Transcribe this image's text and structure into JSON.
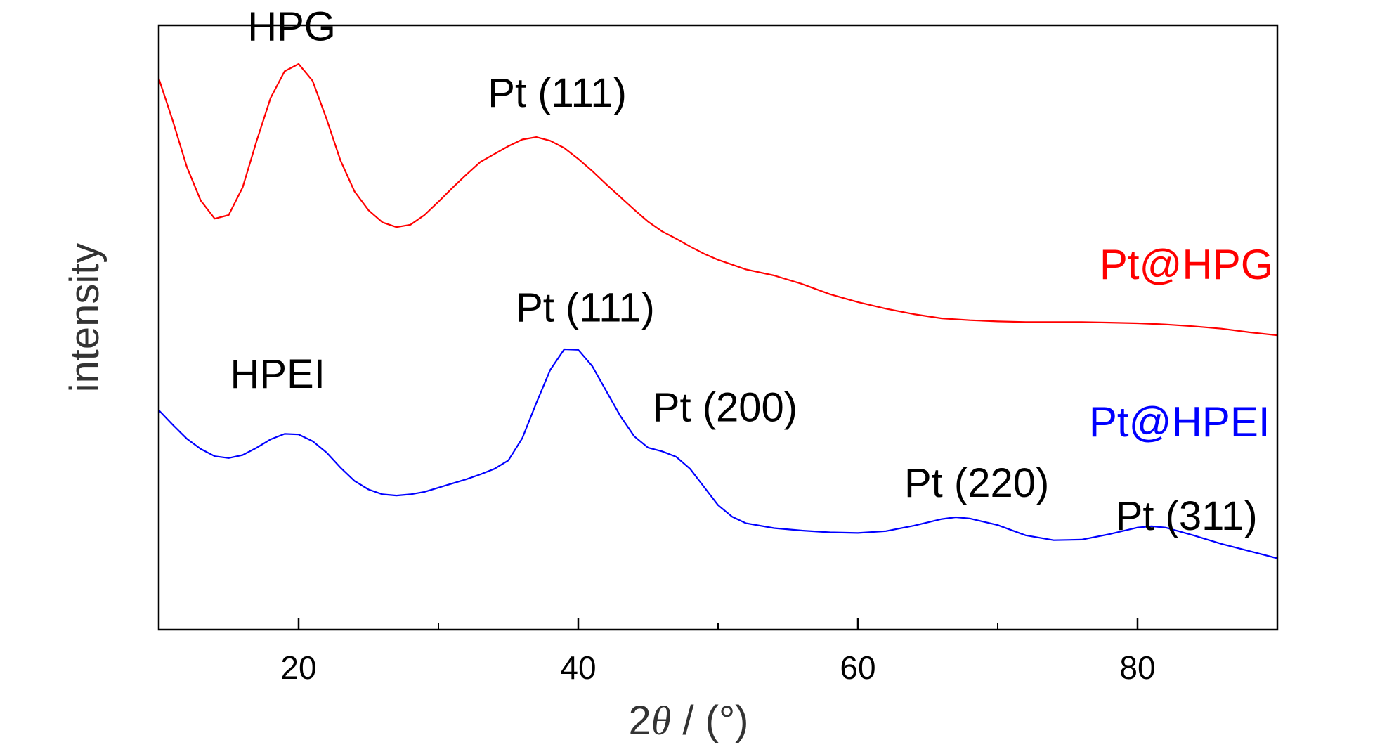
{
  "chart_data": {
    "type": "line",
    "title": "",
    "xlabel_parts": [
      "2",
      "θ",
      " / (°)"
    ],
    "ylabel": "intensity",
    "xlim": [
      10,
      90
    ],
    "ylim": [
      0,
      100
    ],
    "x_ticks": [
      20,
      40,
      60,
      80
    ],
    "x_minor_ticks": [
      30,
      50,
      70
    ],
    "x_tick_labels": [
      "20",
      "40",
      "60",
      "80"
    ],
    "y_ticks_shown": false,
    "grid": false,
    "series": [
      {
        "name": "Pt@HPG",
        "color": "#ff0000",
        "points": [
          [
            10,
            91.2
          ],
          [
            11,
            84.2
          ],
          [
            12,
            76.6
          ],
          [
            13,
            71.0
          ],
          [
            14,
            68.0
          ],
          [
            15,
            68.6
          ],
          [
            16,
            73.2
          ],
          [
            17,
            80.9
          ],
          [
            18,
            88.0
          ],
          [
            19,
            92.4
          ],
          [
            20,
            93.6
          ],
          [
            21,
            90.8
          ],
          [
            22,
            84.5
          ],
          [
            23,
            77.6
          ],
          [
            24,
            72.5
          ],
          [
            25,
            69.4
          ],
          [
            26,
            67.4
          ],
          [
            27,
            66.6
          ],
          [
            28,
            67.0
          ],
          [
            29,
            68.6
          ],
          [
            30,
            70.8
          ],
          [
            31,
            73.1
          ],
          [
            32,
            75.3
          ],
          [
            33,
            77.4
          ],
          [
            34,
            78.7
          ],
          [
            35,
            80.0
          ],
          [
            36,
            81.1
          ],
          [
            37,
            81.5
          ],
          [
            38,
            80.9
          ],
          [
            39,
            79.7
          ],
          [
            40,
            77.9
          ],
          [
            41,
            75.9
          ],
          [
            42,
            73.7
          ],
          [
            43,
            71.6
          ],
          [
            44,
            69.5
          ],
          [
            45,
            67.5
          ],
          [
            46,
            65.9
          ],
          [
            47,
            64.7
          ],
          [
            48,
            63.4
          ],
          [
            49,
            62.2
          ],
          [
            50,
            61.2
          ],
          [
            52,
            59.6
          ],
          [
            54,
            58.6
          ],
          [
            56,
            57.2
          ],
          [
            58,
            55.5
          ],
          [
            60,
            54.2
          ],
          [
            62,
            53.1
          ],
          [
            64,
            52.2
          ],
          [
            66,
            51.5
          ],
          [
            68,
            51.2
          ],
          [
            70,
            51.0
          ],
          [
            72,
            50.9
          ],
          [
            74,
            50.9
          ],
          [
            76,
            50.9
          ],
          [
            78,
            50.8
          ],
          [
            80,
            50.7
          ],
          [
            82,
            50.5
          ],
          [
            84,
            50.2
          ],
          [
            86,
            49.8
          ],
          [
            88,
            49.2
          ],
          [
            90,
            48.7
          ]
        ]
      },
      {
        "name": "Pt@HPEI",
        "color": "#0000ff",
        "points": [
          [
            10,
            36.3
          ],
          [
            11,
            33.9
          ],
          [
            12,
            31.6
          ],
          [
            13,
            29.9
          ],
          [
            14,
            28.7
          ],
          [
            15,
            28.4
          ],
          [
            16,
            28.9
          ],
          [
            17,
            30.1
          ],
          [
            18,
            31.5
          ],
          [
            19,
            32.4
          ],
          [
            20,
            32.3
          ],
          [
            21,
            31.2
          ],
          [
            22,
            29.3
          ],
          [
            23,
            26.8
          ],
          [
            24,
            24.6
          ],
          [
            25,
            23.2
          ],
          [
            26,
            22.4
          ],
          [
            27,
            22.2
          ],
          [
            28,
            22.4
          ],
          [
            29,
            22.8
          ],
          [
            30,
            23.5
          ],
          [
            31,
            24.2
          ],
          [
            32,
            24.9
          ],
          [
            33,
            25.7
          ],
          [
            34,
            26.6
          ],
          [
            35,
            28.0
          ],
          [
            36,
            31.7
          ],
          [
            37,
            37.5
          ],
          [
            38,
            43.0
          ],
          [
            39,
            46.4
          ],
          [
            40,
            46.3
          ],
          [
            41,
            43.6
          ],
          [
            42,
            39.5
          ],
          [
            43,
            35.4
          ],
          [
            44,
            32.0
          ],
          [
            45,
            30.1
          ],
          [
            46,
            29.5
          ],
          [
            47,
            28.6
          ],
          [
            48,
            26.6
          ],
          [
            49,
            23.6
          ],
          [
            50,
            20.6
          ],
          [
            51,
            18.7
          ],
          [
            52,
            17.6
          ],
          [
            54,
            16.8
          ],
          [
            56,
            16.4
          ],
          [
            58,
            16.1
          ],
          [
            60,
            16.0
          ],
          [
            62,
            16.3
          ],
          [
            64,
            17.2
          ],
          [
            66,
            18.3
          ],
          [
            67,
            18.6
          ],
          [
            68,
            18.4
          ],
          [
            70,
            17.3
          ],
          [
            72,
            15.6
          ],
          [
            74,
            14.8
          ],
          [
            76,
            14.9
          ],
          [
            78,
            15.8
          ],
          [
            80,
            16.9
          ],
          [
            81,
            17.1
          ],
          [
            82,
            16.9
          ],
          [
            84,
            15.6
          ],
          [
            86,
            14.2
          ],
          [
            88,
            13.0
          ],
          [
            90,
            11.8
          ]
        ]
      }
    ],
    "annotations": [
      {
        "id": "hpg",
        "text": "HPG",
        "x": 19.5,
        "y": 97.5
      },
      {
        "id": "pt111-hpg",
        "text": "Pt (111)",
        "x": 38.5,
        "y": 86.5
      },
      {
        "id": "hpei",
        "text": "HPEI",
        "x": 18.5,
        "y": 40.0
      },
      {
        "id": "pt111-hpei",
        "text": "Pt (111)",
        "x": 40.5,
        "y": 51.0
      },
      {
        "id": "pt200",
        "text": "Pt (200)",
        "x": 50.5,
        "y": 34.5
      },
      {
        "id": "pt220",
        "text": "Pt (220)",
        "x": 68.5,
        "y": 22.0
      },
      {
        "id": "pt311",
        "text": "Pt (311)",
        "x": 83.5,
        "y": 16.5
      }
    ],
    "legend_labels": [
      {
        "text": "Pt@HPG",
        "color": "#ff0000",
        "x": 83.5,
        "y": 58.0
      },
      {
        "text": "Pt@HPEI",
        "color": "#0000ff",
        "x": 83.0,
        "y": 32.0
      }
    ]
  }
}
